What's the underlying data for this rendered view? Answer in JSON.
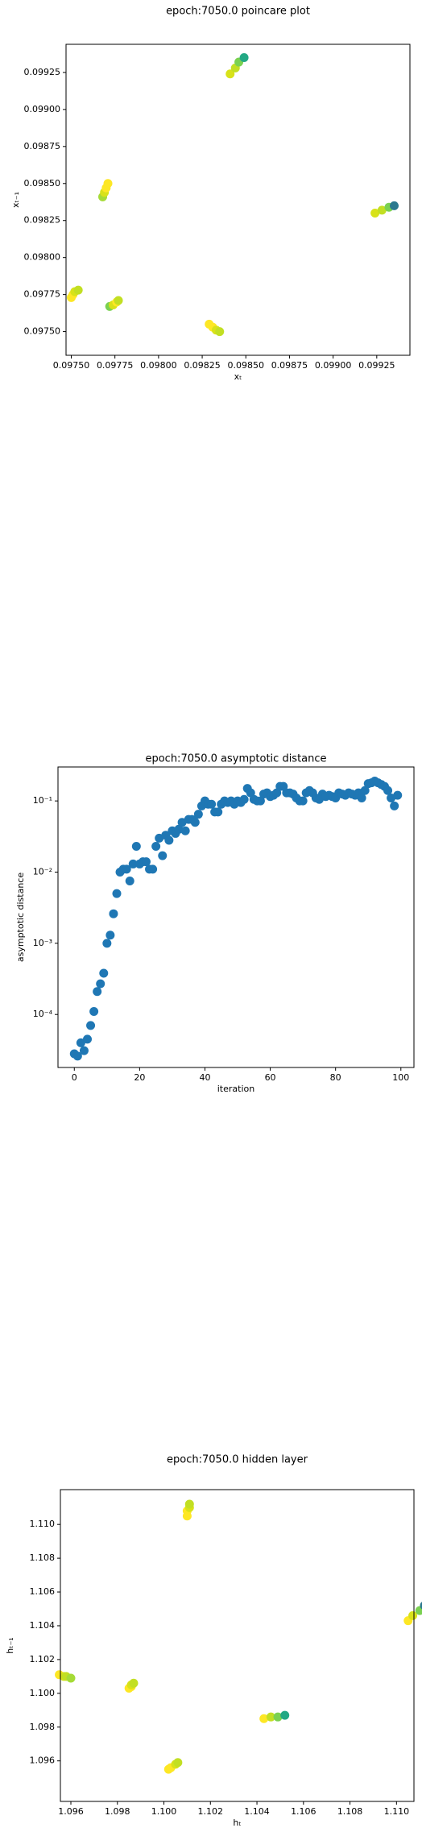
{
  "chart_data": [
    {
      "type": "scatter",
      "title": "epoch:7050.0 poincare plot",
      "x_label": "xₜ",
      "y_label": "xₜ₋₁",
      "x": [
        0.09841,
        0.09844,
        0.09846,
        0.09849,
        0.09768,
        0.09769,
        0.0977,
        0.09771,
        0.09924,
        0.09928,
        0.09932,
        0.09935,
        0.0975,
        0.09751,
        0.09752,
        0.09754,
        0.09772,
        0.09774,
        0.09776,
        0.09777,
        0.09829,
        0.09831,
        0.09833,
        0.09835
      ],
      "values": [
        0.09924,
        0.09928,
        0.09932,
        0.09935,
        0.09841,
        0.09844,
        0.09847,
        0.0985,
        0.0983,
        0.09832,
        0.09834,
        0.09835,
        0.09773,
        0.09775,
        0.09777,
        0.09778,
        0.09767,
        0.09768,
        0.0977,
        0.09771,
        0.09755,
        0.09753,
        0.09751,
        0.0975
      ],
      "colors": [
        "#d8e219",
        "#c2df23",
        "#7ad151",
        "#22a884",
        "#a5db36",
        "#d8e219",
        "#fde725",
        "#fde725",
        "#d8e219",
        "#c2df23",
        "#7ad151",
        "#2a788e",
        "#fde725",
        "#fde725",
        "#d8e219",
        "#c2df23",
        "#7ad151",
        "#d8e219",
        "#fde725",
        "#c2df23",
        "#fde725",
        "#fde725",
        "#d8e219",
        "#c2df23"
      ],
      "xlim": [
        0.09747,
        0.09944
      ],
      "ylim": [
        0.09734,
        0.09944
      ],
      "xticks": [
        {
          "value": 0.0975,
          "label": "0.09750"
        },
        {
          "value": 0.09775,
          "label": "0.09775"
        },
        {
          "value": 0.098,
          "label": "0.09800"
        },
        {
          "value": 0.09825,
          "label": "0.09825"
        },
        {
          "value": 0.0985,
          "label": "0.09850"
        },
        {
          "value": 0.09875,
          "label": "0.09875"
        },
        {
          "value": 0.099,
          "label": "0.09900"
        },
        {
          "value": 0.09925,
          "label": "0.09925"
        }
      ],
      "yticks": [
        {
          "value": 0.0975,
          "label": "0.09750"
        },
        {
          "value": 0.09775,
          "label": "0.09775"
        },
        {
          "value": 0.098,
          "label": "0.09800"
        },
        {
          "value": 0.09825,
          "label": "0.09825"
        },
        {
          "value": 0.0985,
          "label": "0.09850"
        },
        {
          "value": 0.09875,
          "label": "0.09875"
        },
        {
          "value": 0.099,
          "label": "0.09900"
        },
        {
          "value": 0.09925,
          "label": "0.09925"
        }
      ]
    },
    {
      "type": "scatter",
      "title": "epoch:7050.0 asymptotic distance",
      "x_label": "iteration",
      "y_label": "asymptotic distance",
      "yscale": "log",
      "color": "#1f77b4",
      "x": [
        0,
        1,
        2,
        3,
        4,
        5,
        6,
        7,
        8,
        9,
        10,
        11,
        12,
        13,
        14,
        15,
        16,
        17,
        18,
        19,
        20,
        21,
        22,
        23,
        24,
        25,
        26,
        27,
        28,
        29,
        30,
        31,
        32,
        33,
        34,
        35,
        36,
        37,
        38,
        39,
        40,
        41,
        42,
        43,
        44,
        45,
        46,
        47,
        48,
        49,
        50,
        51,
        52,
        53,
        54,
        55,
        56,
        57,
        58,
        59,
        60,
        61,
        62,
        63,
        64,
        65,
        66,
        67,
        68,
        69,
        70,
        71,
        72,
        73,
        74,
        75,
        76,
        77,
        78,
        79,
        80,
        81,
        82,
        83,
        84,
        85,
        86,
        87,
        88,
        89,
        90,
        91,
        92,
        93,
        94,
        95,
        96,
        97,
        98,
        99
      ],
      "values": [
        2.8e-05,
        2.6e-05,
        4e-05,
        3.1e-05,
        4.5e-05,
        7e-05,
        0.00011,
        0.00021,
        0.00027,
        0.00038,
        0.001,
        0.0013,
        0.0026,
        0.005,
        0.01,
        0.011,
        0.011,
        0.0075,
        0.013,
        0.023,
        0.013,
        0.014,
        0.014,
        0.011,
        0.011,
        0.023,
        0.03,
        0.017,
        0.033,
        0.028,
        0.038,
        0.035,
        0.04,
        0.05,
        0.038,
        0.055,
        0.055,
        0.05,
        0.065,
        0.085,
        0.1,
        0.09,
        0.09,
        0.07,
        0.07,
        0.09,
        0.1,
        0.095,
        0.1,
        0.09,
        0.1,
        0.095,
        0.105,
        0.15,
        0.13,
        0.105,
        0.1,
        0.1,
        0.125,
        0.13,
        0.115,
        0.12,
        0.13,
        0.16,
        0.16,
        0.13,
        0.13,
        0.125,
        0.11,
        0.1,
        0.1,
        0.13,
        0.14,
        0.13,
        0.11,
        0.105,
        0.125,
        0.115,
        0.12,
        0.115,
        0.11,
        0.13,
        0.125,
        0.12,
        0.13,
        0.125,
        0.12,
        0.13,
        0.11,
        0.14,
        0.175,
        0.18,
        0.19,
        0.18,
        0.17,
        0.16,
        0.14,
        0.11,
        0.085,
        0.12
      ],
      "xlim": [
        -5,
        104
      ],
      "ylim": [
        1.8e-05,
        0.3
      ],
      "xticks": [
        0,
        20,
        40,
        60,
        80,
        100
      ],
      "yticks": [
        {
          "value": 0.0001,
          "label": "10⁻⁴"
        },
        {
          "value": 0.001,
          "label": "10⁻³"
        },
        {
          "value": 0.01,
          "label": "10⁻²"
        },
        {
          "value": 0.1,
          "label": "10⁻¹"
        }
      ]
    },
    {
      "type": "scatter",
      "title": "epoch:7050.0 hidden layer",
      "x_label": "hₜ",
      "y_label": "hₜ₋₁",
      "x": [
        1.101,
        1.101,
        1.1011,
        1.1011,
        1.1105,
        1.1107,
        1.111,
        1.1112,
        1.0955,
        1.0957,
        1.0958,
        1.096,
        1.0985,
        1.0986,
        1.0986,
        1.0987,
        1.1043,
        1.1046,
        1.1049,
        1.1052,
        1.1002,
        1.1003,
        1.1005,
        1.1006
      ],
      "values": [
        1.1105,
        1.1108,
        1.111,
        1.1112,
        1.1043,
        1.1046,
        1.1049,
        1.1052,
        1.1011,
        1.101,
        1.101,
        1.1009,
        1.1003,
        1.1004,
        1.1005,
        1.1006,
        1.0985,
        1.0986,
        1.0986,
        1.0987,
        1.0955,
        1.0956,
        1.0958,
        1.0959
      ],
      "colors": [
        "#fde725",
        "#fde725",
        "#d8e219",
        "#c2df23",
        "#fde725",
        "#d8e219",
        "#7ad151",
        "#2a788e",
        "#fde725",
        "#d8e219",
        "#c2df23",
        "#a5db36",
        "#fde725",
        "#fde725",
        "#d8e219",
        "#c2df23",
        "#fde725",
        "#c2df23",
        "#7ad151",
        "#22a884",
        "#fde725",
        "#fde725",
        "#d8e219",
        "#c2df23"
      ],
      "xlim": [
        1.09555,
        1.11075
      ],
      "ylim": [
        1.0936,
        1.11206
      ],
      "xticks": [
        1.096,
        1.098,
        {
          "value": 1.1,
          "label": "1.100"
        },
        1.102,
        1.104,
        1.106,
        1.108,
        {
          "value": 1.11,
          "label": "1.110"
        }
      ],
      "yticks": [
        1.096,
        1.098,
        {
          "value": 1.1,
          "label": "1.100"
        },
        1.102,
        1.104,
        1.106,
        1.108,
        {
          "value": 1.11,
          "label": "1.110"
        }
      ]
    }
  ]
}
